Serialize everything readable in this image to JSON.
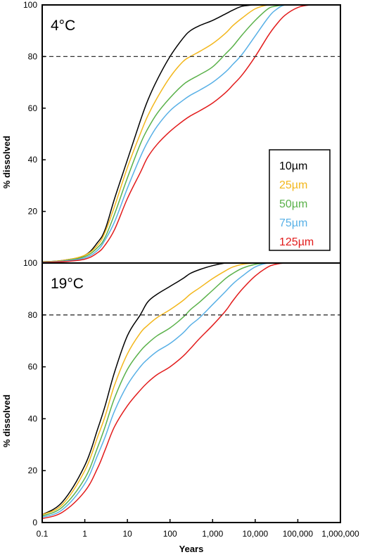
{
  "chart_data": [
    {
      "type": "line",
      "panel_label": "4°C",
      "ylabel": "% dissolved",
      "xlabel": "",
      "xscale": "log",
      "xlim": [
        0.1,
        1000000
      ],
      "ylim": [
        0,
        100
      ],
      "yticks": [
        "20",
        "40",
        "60",
        "80",
        "100"
      ],
      "reference_line": 80,
      "legend_position": "right",
      "legend": [
        "10µm",
        "25µm",
        "50µm",
        "75µm",
        "125µm"
      ],
      "x": [
        0.1,
        0.3,
        1,
        2,
        3,
        5,
        10,
        20,
        30,
        50,
        100,
        200,
        300,
        500,
        1000,
        2000,
        3000,
        5000,
        10000,
        20000,
        30000,
        50000,
        100000,
        200000,
        300000,
        500000
      ],
      "series": [
        {
          "name": "10µm",
          "color": "#000000",
          "values": [
            0.5,
            1,
            3,
            8,
            13,
            25,
            40,
            55,
            63,
            71,
            80,
            87,
            90,
            92,
            94,
            96.5,
            98,
            99.5,
            100,
            100,
            100,
            100,
            100,
            100,
            100,
            100
          ]
        },
        {
          "name": "25µm",
          "color": "#f3b71c",
          "values": [
            0.5,
            1,
            3,
            7,
            12,
            22,
            37,
            50,
            57,
            64,
            72,
            78,
            80,
            82,
            85,
            89,
            92,
            95,
            98.5,
            100,
            100,
            100,
            100,
            100,
            100,
            100
          ]
        },
        {
          "name": "50µm",
          "color": "#5ab14a",
          "values": [
            0.4,
            0.8,
            2.5,
            6,
            10,
            19,
            33,
            46,
            52,
            58,
            64,
            69,
            71,
            73,
            76,
            81,
            84,
            88.5,
            94,
            98.5,
            99.5,
            100,
            100,
            100,
            100,
            100
          ]
        },
        {
          "name": "75µm",
          "color": "#58b0e6",
          "values": [
            0.3,
            0.7,
            2,
            5,
            9,
            16,
            29,
            41,
            47,
            53,
            59,
            63,
            65,
            67,
            70,
            74,
            77,
            81,
            88,
            95,
            98,
            100,
            100,
            100,
            100,
            100
          ]
        },
        {
          "name": "125µm",
          "color": "#e21b1b",
          "values": [
            0.2,
            0.5,
            1.5,
            4,
            7,
            13,
            25,
            35,
            41,
            46,
            51,
            55,
            57,
            59,
            62,
            66,
            69,
            73,
            80,
            88,
            92,
            96,
            99,
            100,
            100,
            100
          ]
        }
      ]
    },
    {
      "type": "line",
      "panel_label": "19°C",
      "ylabel": "% dissolved",
      "xlabel": "Years",
      "xscale": "log",
      "xlim": [
        0.1,
        1000000
      ],
      "ylim": [
        0,
        100
      ],
      "xticks": [
        "0.1",
        "1",
        "10",
        "100",
        "1,000",
        "10,000",
        "100,000",
        "1,000,000"
      ],
      "yticks": [
        "0",
        "20",
        "40",
        "60",
        "80",
        "100"
      ],
      "reference_line": 80,
      "x": [
        0.1,
        0.3,
        1,
        2,
        3,
        5,
        10,
        20,
        30,
        50,
        100,
        200,
        300,
        500,
        1000,
        2000,
        3000,
        5000,
        10000,
        20000,
        30000,
        50000,
        100000,
        200000,
        300000,
        500000
      ],
      "series": [
        {
          "name": "10µm",
          "color": "#000000",
          "values": [
            3,
            8,
            22,
            36,
            45,
            58,
            72,
            80,
            85,
            88,
            91,
            94,
            96,
            97.5,
            99,
            100,
            100,
            100,
            100,
            100,
            100,
            100,
            100,
            100,
            100,
            100
          ]
        },
        {
          "name": "25µm",
          "color": "#f3b71c",
          "values": [
            3,
            7,
            20,
            33,
            41,
            53,
            65,
            73,
            76,
            79,
            82,
            85.5,
            88,
            90.5,
            94,
            97,
            98.5,
            99.5,
            100,
            100,
            100,
            100,
            100,
            100,
            100,
            100
          ]
        },
        {
          "name": "50µm",
          "color": "#5ab14a",
          "values": [
            2.5,
            6,
            17,
            29,
            37,
            48,
            59,
            66,
            69,
            72,
            75,
            79,
            82,
            85,
            89.5,
            94,
            96,
            98,
            99.5,
            100,
            100,
            100,
            100,
            100,
            100,
            100
          ]
        },
        {
          "name": "75µm",
          "color": "#58b0e6",
          "values": [
            2,
            5,
            15,
            26,
            33,
            43,
            53,
            60,
            63,
            66,
            69,
            73,
            76,
            79,
            84,
            89,
            92,
            95,
            98.5,
            100,
            100,
            100,
            100,
            100,
            100,
            100
          ]
        },
        {
          "name": "125µm",
          "color": "#e21b1b",
          "values": [
            1.5,
            4,
            12,
            21,
            28,
            37,
            45,
            51,
            54,
            57,
            60,
            64,
            67,
            71,
            76,
            81.5,
            85.5,
            90,
            95,
            98.5,
            99.5,
            100,
            100,
            100,
            100,
            100
          ]
        }
      ]
    }
  ]
}
